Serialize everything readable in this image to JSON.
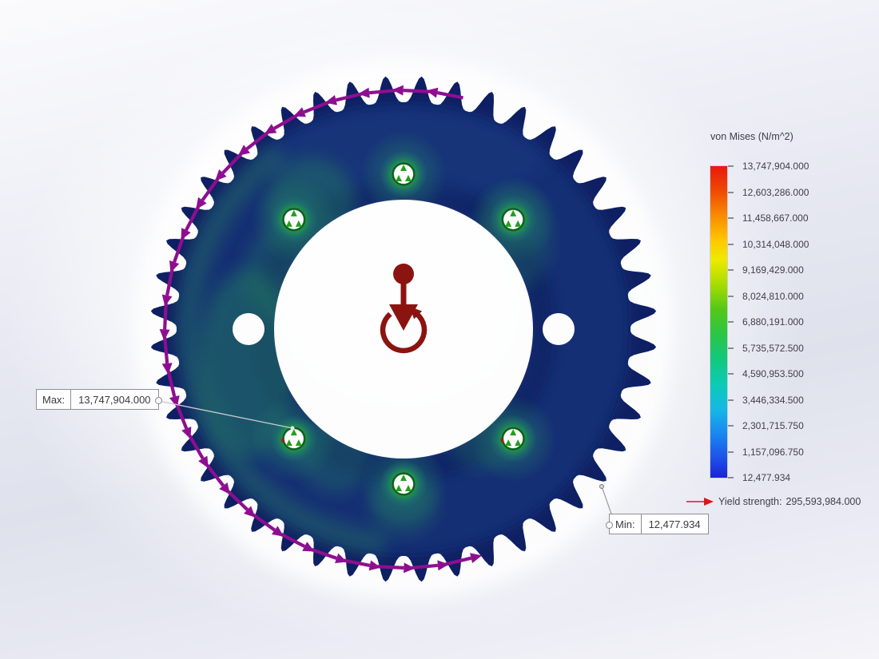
{
  "legend": {
    "title": "von Mises (N/m^2)",
    "values": [
      "13,747,904.000",
      "12,603,286.000",
      "11,458,667.000",
      "10,314,048.000",
      "9,169,429.000",
      "8,024,810.000",
      "6,880,191.000",
      "5,735,572.500",
      "4,590,953.500",
      "3,446,334.500",
      "2,301,715.750",
      "1,157,096.750",
      "12,477.934"
    ],
    "yield": {
      "label": "Yield strength:",
      "value": "295,593,984.000"
    }
  },
  "callouts": {
    "max": {
      "label": "Max:",
      "value": "13,747,904.000"
    },
    "min": {
      "label": "Min:",
      "value": "12,477.934"
    }
  },
  "colors": {
    "load_arrow": "#8e0e90",
    "torque_symbol": "#8b1410",
    "yield_arrow": "#e01414",
    "bolt_stress_green": "#28a82c",
    "body_navy": "#152f74",
    "scale_top": "#e8190e",
    "scale_bottom": "#1a23d6"
  }
}
